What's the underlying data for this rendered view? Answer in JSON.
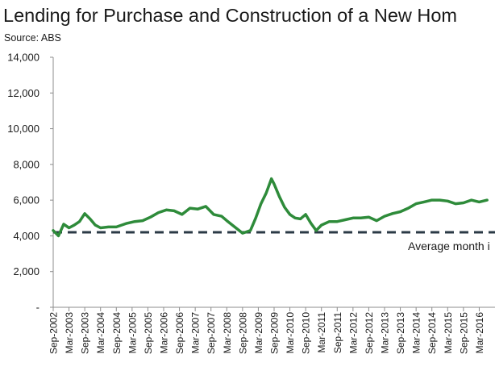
{
  "title": "Lending for Purchase and Construction of a New Hom",
  "source": "Source: ABS",
  "chart_data": {
    "type": "line",
    "title": "Lending for Purchase and Construction of a New Hom",
    "ylim": [
      0,
      14000
    ],
    "y_ticks": [
      0,
      2000,
      4000,
      6000,
      8000,
      10000,
      12000,
      14000
    ],
    "y_tick_labels": [
      "-",
      "2,000",
      "4,000",
      "6,000",
      "8,000",
      "10,000",
      "12,000",
      "14,000"
    ],
    "x_tick_labels": [
      "Sep-2002",
      "Mar-2003",
      "Sep-2003",
      "Mar-2004",
      "Sep-2004",
      "Mar-2005",
      "Sep-2005",
      "Mar-2006",
      "Sep-2006",
      "Mar-2007",
      "Sep-2007",
      "Mar-2008",
      "Sep-2008",
      "Mar-2009",
      "Sep-2009",
      "Mar-2010",
      "Sep-2010",
      "Mar-2011",
      "Sep-2011",
      "Mar-2012",
      "Sep-2012",
      "Mar-2013",
      "Sep-2013",
      "Mar-2014",
      "Sep-2014",
      "Mar-2015",
      "Sep-2015",
      "Mar-2016"
    ],
    "grid": false,
    "series": [
      {
        "color": "#2e8b3a",
        "x": [
          "2002-09",
          "2002-11",
          "2003-01",
          "2003-03",
          "2003-05",
          "2003-07",
          "2003-09",
          "2003-11",
          "2004-01",
          "2004-03",
          "2004-06",
          "2004-09",
          "2005-01",
          "2005-04",
          "2005-07",
          "2005-10",
          "2006-01",
          "2006-04",
          "2006-07",
          "2006-10",
          "2007-01",
          "2007-04",
          "2007-07",
          "2007-10",
          "2008-01",
          "2008-03",
          "2008-06",
          "2008-09",
          "2008-12",
          "2009-02",
          "2009-04",
          "2009-06",
          "2009-08",
          "2009-09",
          "2009-11",
          "2010-01",
          "2010-03",
          "2010-05",
          "2010-07",
          "2010-09",
          "2010-11",
          "2011-01",
          "2011-03",
          "2011-06",
          "2011-09",
          "2011-12",
          "2012-03",
          "2012-06",
          "2012-09",
          "2012-12",
          "2013-03",
          "2013-06",
          "2013-09",
          "2013-12",
          "2014-03",
          "2014-06",
          "2014-09",
          "2014-12",
          "2015-03",
          "2015-06",
          "2015-09",
          "2015-12",
          "2016-03",
          "2016-06"
        ],
        "values": [
          4300,
          4000,
          4650,
          4450,
          4600,
          4800,
          5250,
          4950,
          4600,
          4450,
          4500,
          4500,
          4700,
          4800,
          4850,
          5050,
          5300,
          5450,
          5400,
          5200,
          5550,
          5500,
          5650,
          5200,
          5100,
          4850,
          4500,
          4150,
          4300,
          5000,
          5800,
          6400,
          7200,
          6900,
          6200,
          5600,
          5200,
          5000,
          4950,
          5200,
          4700,
          4300,
          4600,
          4800,
          4800,
          4900,
          5000,
          5000,
          5050,
          4850,
          5100,
          5250,
          5350,
          5550,
          5800,
          5900,
          6000,
          6000,
          5950,
          5800,
          5850,
          6000,
          5900,
          6000
        ]
      },
      {
        "color": "#2b3a46",
        "style": "dashed",
        "values": [
          4200
        ]
      }
    ],
    "annotations": [
      "Average month i"
    ]
  }
}
